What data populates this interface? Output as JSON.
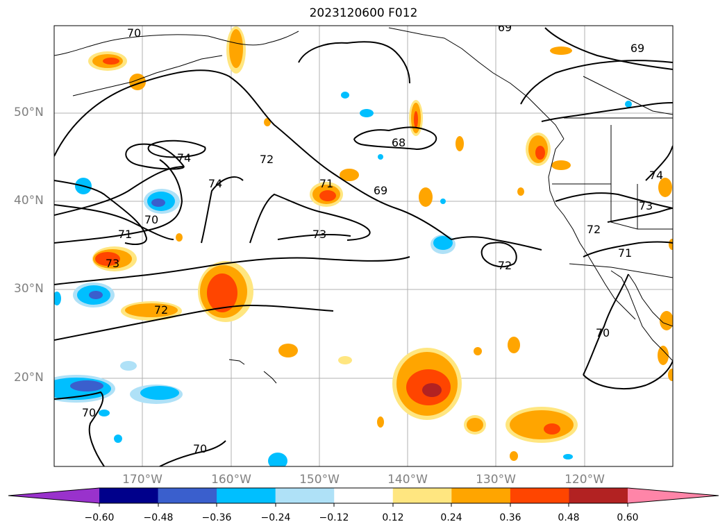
{
  "title": "2023120600 F012",
  "lat_labels": [
    "50°N",
    "40°N",
    "30°N",
    "20°N"
  ],
  "lon_labels": [
    "170°W",
    "160°W",
    "150°W",
    "140°W",
    "130°W",
    "120°W"
  ],
  "contour_labels": [
    "70",
    "69",
    "69",
    "74",
    "74",
    "72",
    "68",
    "71",
    "69",
    "73",
    "70",
    "71",
    "73",
    "72",
    "73",
    "71",
    "72",
    "70",
    "70",
    "70",
    "74",
    "72"
  ],
  "colorbar": {
    "ticks": [
      "−0.60",
      "−0.48",
      "−0.36",
      "−0.24",
      "−0.12",
      "0.12",
      "0.24",
      "0.36",
      "0.48",
      "0.60"
    ],
    "colors": [
      "#9932CC",
      "#00008B",
      "#3A5FCD",
      "#00BFFF",
      "#AFE1F7",
      "#FFFFFF",
      "#FFE680",
      "#FFA500",
      "#FF4500",
      "#B22222",
      "#FF85A8"
    ]
  },
  "colors": {
    "contour": "#000000",
    "grid": "#b0b0b0",
    "axis_label": "#808080"
  }
}
